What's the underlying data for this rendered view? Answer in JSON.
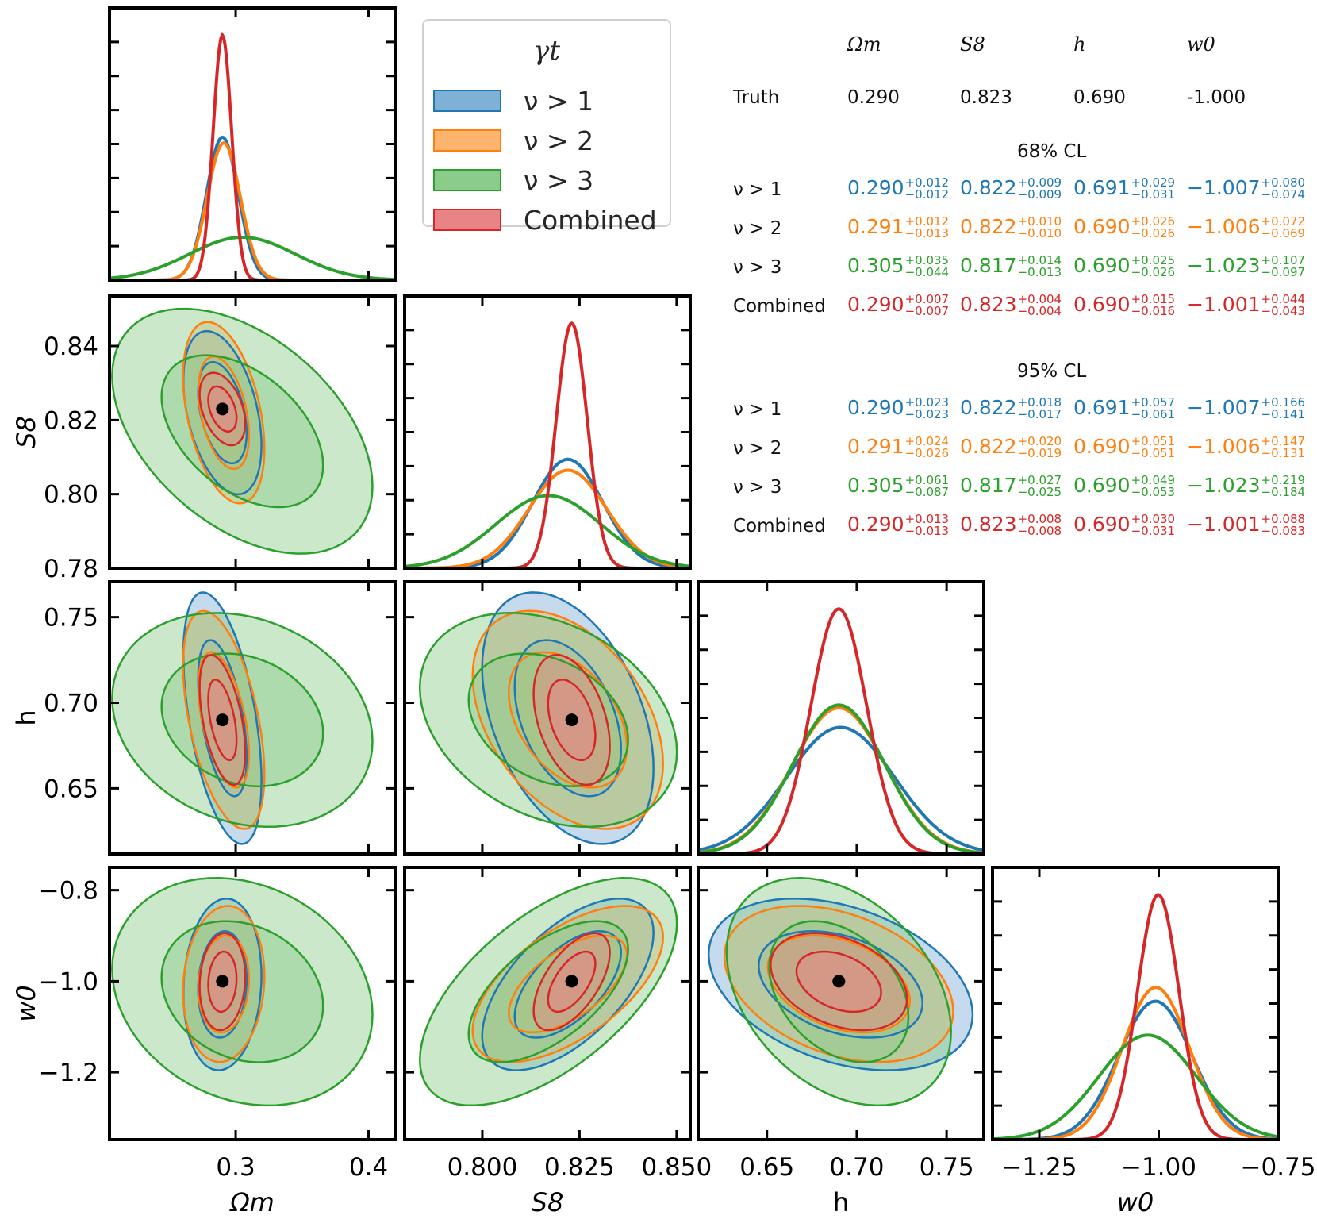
{
  "legend": {
    "title": "γt",
    "items": [
      {
        "label": "ν > 1",
        "color": "#1f77b4",
        "fill": "#7fb0d6"
      },
      {
        "label": "ν > 2",
        "color": "#ff7f0e",
        "fill": "#ffb46d"
      },
      {
        "label": "ν > 3",
        "color": "#2ca02c",
        "fill": "#8ccc8a"
      },
      {
        "label": "Combined",
        "color": "#d62728",
        "fill": "#e88485"
      }
    ]
  },
  "summary": {
    "headers": [
      "Ωm",
      "S8",
      "h",
      "w0"
    ],
    "truth_label": "Truth",
    "truth": [
      "0.290",
      "0.823",
      "0.690",
      "-1.000"
    ],
    "sections": [
      {
        "title": "68% CL",
        "rows": [
          {
            "label": "ν > 1",
            "color": "#1f77b4",
            "cells": [
              {
                "v": "0.290",
                "p": "+0.012",
                "m": "−0.012"
              },
              {
                "v": "0.822",
                "p": "+0.009",
                "m": "−0.009"
              },
              {
                "v": "0.691",
                "p": "+0.029",
                "m": "−0.031"
              },
              {
                "v": "−1.007",
                "p": "+0.080",
                "m": "−0.074"
              }
            ]
          },
          {
            "label": "ν > 2",
            "color": "#ff7f0e",
            "cells": [
              {
                "v": "0.291",
                "p": "+0.012",
                "m": "−0.013"
              },
              {
                "v": "0.822",
                "p": "+0.010",
                "m": "−0.010"
              },
              {
                "v": "0.690",
                "p": "+0.026",
                "m": "−0.026"
              },
              {
                "v": "−1.006",
                "p": "+0.072",
                "m": "−0.069"
              }
            ]
          },
          {
            "label": "ν > 3",
            "color": "#2ca02c",
            "cells": [
              {
                "v": "0.305",
                "p": "+0.035",
                "m": "−0.044"
              },
              {
                "v": "0.817",
                "p": "+0.014",
                "m": "−0.013"
              },
              {
                "v": "0.690",
                "p": "+0.025",
                "m": "−0.026"
              },
              {
                "v": "−1.023",
                "p": "+0.107",
                "m": "−0.097"
              }
            ]
          },
          {
            "label": "Combined",
            "color": "#d62728",
            "cells": [
              {
                "v": "0.290",
                "p": "+0.007",
                "m": "−0.007"
              },
              {
                "v": "0.823",
                "p": "+0.004",
                "m": "−0.004"
              },
              {
                "v": "0.690",
                "p": "+0.015",
                "m": "−0.016"
              },
              {
                "v": "−1.001",
                "p": "+0.044",
                "m": "−0.043"
              }
            ]
          }
        ]
      },
      {
        "title": "95% CL",
        "rows": [
          {
            "label": "ν > 1",
            "color": "#1f77b4",
            "cells": [
              {
                "v": "0.290",
                "p": "+0.023",
                "m": "−0.023"
              },
              {
                "v": "0.822",
                "p": "+0.018",
                "m": "−0.017"
              },
              {
                "v": "0.691",
                "p": "+0.057",
                "m": "−0.061"
              },
              {
                "v": "−1.007",
                "p": "+0.166",
                "m": "−0.141"
              }
            ]
          },
          {
            "label": "ν > 2",
            "color": "#ff7f0e",
            "cells": [
              {
                "v": "0.291",
                "p": "+0.024",
                "m": "−0.026"
              },
              {
                "v": "0.822",
                "p": "+0.020",
                "m": "−0.019"
              },
              {
                "v": "0.690",
                "p": "+0.051",
                "m": "−0.051"
              },
              {
                "v": "−1.006",
                "p": "+0.147",
                "m": "−0.131"
              }
            ]
          },
          {
            "label": "ν > 3",
            "color": "#2ca02c",
            "cells": [
              {
                "v": "0.305",
                "p": "+0.061",
                "m": "−0.087"
              },
              {
                "v": "0.817",
                "p": "+0.027",
                "m": "−0.025"
              },
              {
                "v": "0.690",
                "p": "+0.049",
                "m": "−0.053"
              },
              {
                "v": "−1.023",
                "p": "+0.219",
                "m": "−0.184"
              }
            ]
          },
          {
            "label": "Combined",
            "color": "#d62728",
            "cells": [
              {
                "v": "0.290",
                "p": "+0.013",
                "m": "−0.013"
              },
              {
                "v": "0.823",
                "p": "+0.008",
                "m": "−0.008"
              },
              {
                "v": "0.690",
                "p": "+0.030",
                "m": "−0.031"
              },
              {
                "v": "−1.001",
                "p": "+0.088",
                "m": "−0.083"
              }
            ]
          }
        ]
      }
    ]
  },
  "chart_data": {
    "type": "scatter",
    "subtype": "corner-plot",
    "title": "",
    "params": [
      {
        "key": "Om",
        "label": "Ωm",
        "range": [
          0.205,
          0.42
        ],
        "ticks": [
          0.3,
          0.4
        ],
        "tick_labels": [
          "0.3",
          "0.4"
        ],
        "truth": 0.29
      },
      {
        "key": "S8",
        "label": "S8",
        "range": [
          0.78,
          0.8535
        ],
        "ticks": [
          0.78,
          0.8,
          0.82,
          0.84
        ],
        "tick_labels": [
          "0.78",
          "0.80",
          "0.82",
          "0.84"
        ],
        "xticks": [
          0.8,
          0.825,
          0.85
        ],
        "xtick_labels": [
          "0.800",
          "0.825",
          "0.850"
        ],
        "truth": 0.823
      },
      {
        "key": "h",
        "label": "h",
        "range": [
          0.6117,
          0.7707
        ],
        "ticks": [
          0.65,
          0.7,
          0.75
        ],
        "tick_labels": [
          "0.65",
          "0.70",
          "0.75"
        ],
        "truth": 0.69
      },
      {
        "key": "w0",
        "label": "w0",
        "range": [
          -1.348,
          -0.75
        ],
        "ticks": [
          -0.8,
          -1.0,
          -1.2
        ],
        "tick_labels": [
          "−0.8",
          "−1.0",
          "−1.2"
        ],
        "xticks": [
          -1.25,
          -1.0,
          -0.75
        ],
        "xtick_labels": [
          "−1.25",
          "−1.00",
          "−0.75"
        ],
        "truth": -1.0
      }
    ],
    "series": [
      {
        "name": "ν > 1",
        "color": "#1f77b4",
        "fill": "#7fb0d6",
        "mean": [
          0.29,
          0.822,
          0.691,
          -1.007
        ],
        "sigma": [
          0.012,
          0.009,
          0.03,
          0.077
        ],
        "corr": [
          [
            1,
            -0.4,
            -0.5,
            0.1
          ],
          [
            -0.4,
            1,
            -0.4,
            0.6
          ],
          [
            -0.5,
            -0.4,
            1,
            -0.35
          ],
          [
            0.1,
            0.6,
            -0.35,
            1
          ]
        ]
      },
      {
        "name": "ν > 2",
        "color": "#ff7f0e",
        "fill": "#ffb46d",
        "mean": [
          0.291,
          0.822,
          0.69,
          -1.006
        ],
        "sigma": [
          0.0125,
          0.01,
          0.026,
          0.07
        ],
        "corr": [
          [
            1,
            -0.4,
            -0.5,
            0.1
          ],
          [
            -0.4,
            1,
            -0.4,
            0.6
          ],
          [
            -0.5,
            -0.4,
            1,
            -0.35
          ],
          [
            0.1,
            0.6,
            -0.35,
            1
          ]
        ]
      },
      {
        "name": "ν > 3",
        "color": "#2ca02c",
        "fill": "#8ccc8a",
        "mean": [
          0.305,
          0.817,
          0.69,
          -1.023
        ],
        "sigma": [
          0.04,
          0.0135,
          0.0255,
          0.102
        ],
        "corr": [
          [
            1,
            -0.45,
            -0.2,
            -0.2
          ],
          [
            -0.45,
            1,
            -0.3,
            0.6
          ],
          [
            -0.2,
            -0.3,
            1,
            -0.35
          ],
          [
            -0.2,
            0.6,
            -0.35,
            1
          ]
        ]
      },
      {
        "name": "Combined",
        "color": "#d62728",
        "fill": "#e88485",
        "mean": [
          0.29,
          0.823,
          0.69,
          -1.001
        ],
        "sigma": [
          0.007,
          0.004,
          0.0155,
          0.0435
        ],
        "corr": [
          [
            1,
            -0.4,
            -0.5,
            0.1
          ],
          [
            -0.4,
            1,
            -0.4,
            0.6
          ],
          [
            -0.5,
            -0.4,
            1,
            -0.35
          ],
          [
            0.1,
            0.6,
            -0.35,
            1
          ]
        ]
      }
    ],
    "legend_position": "top-center",
    "grid": false
  }
}
